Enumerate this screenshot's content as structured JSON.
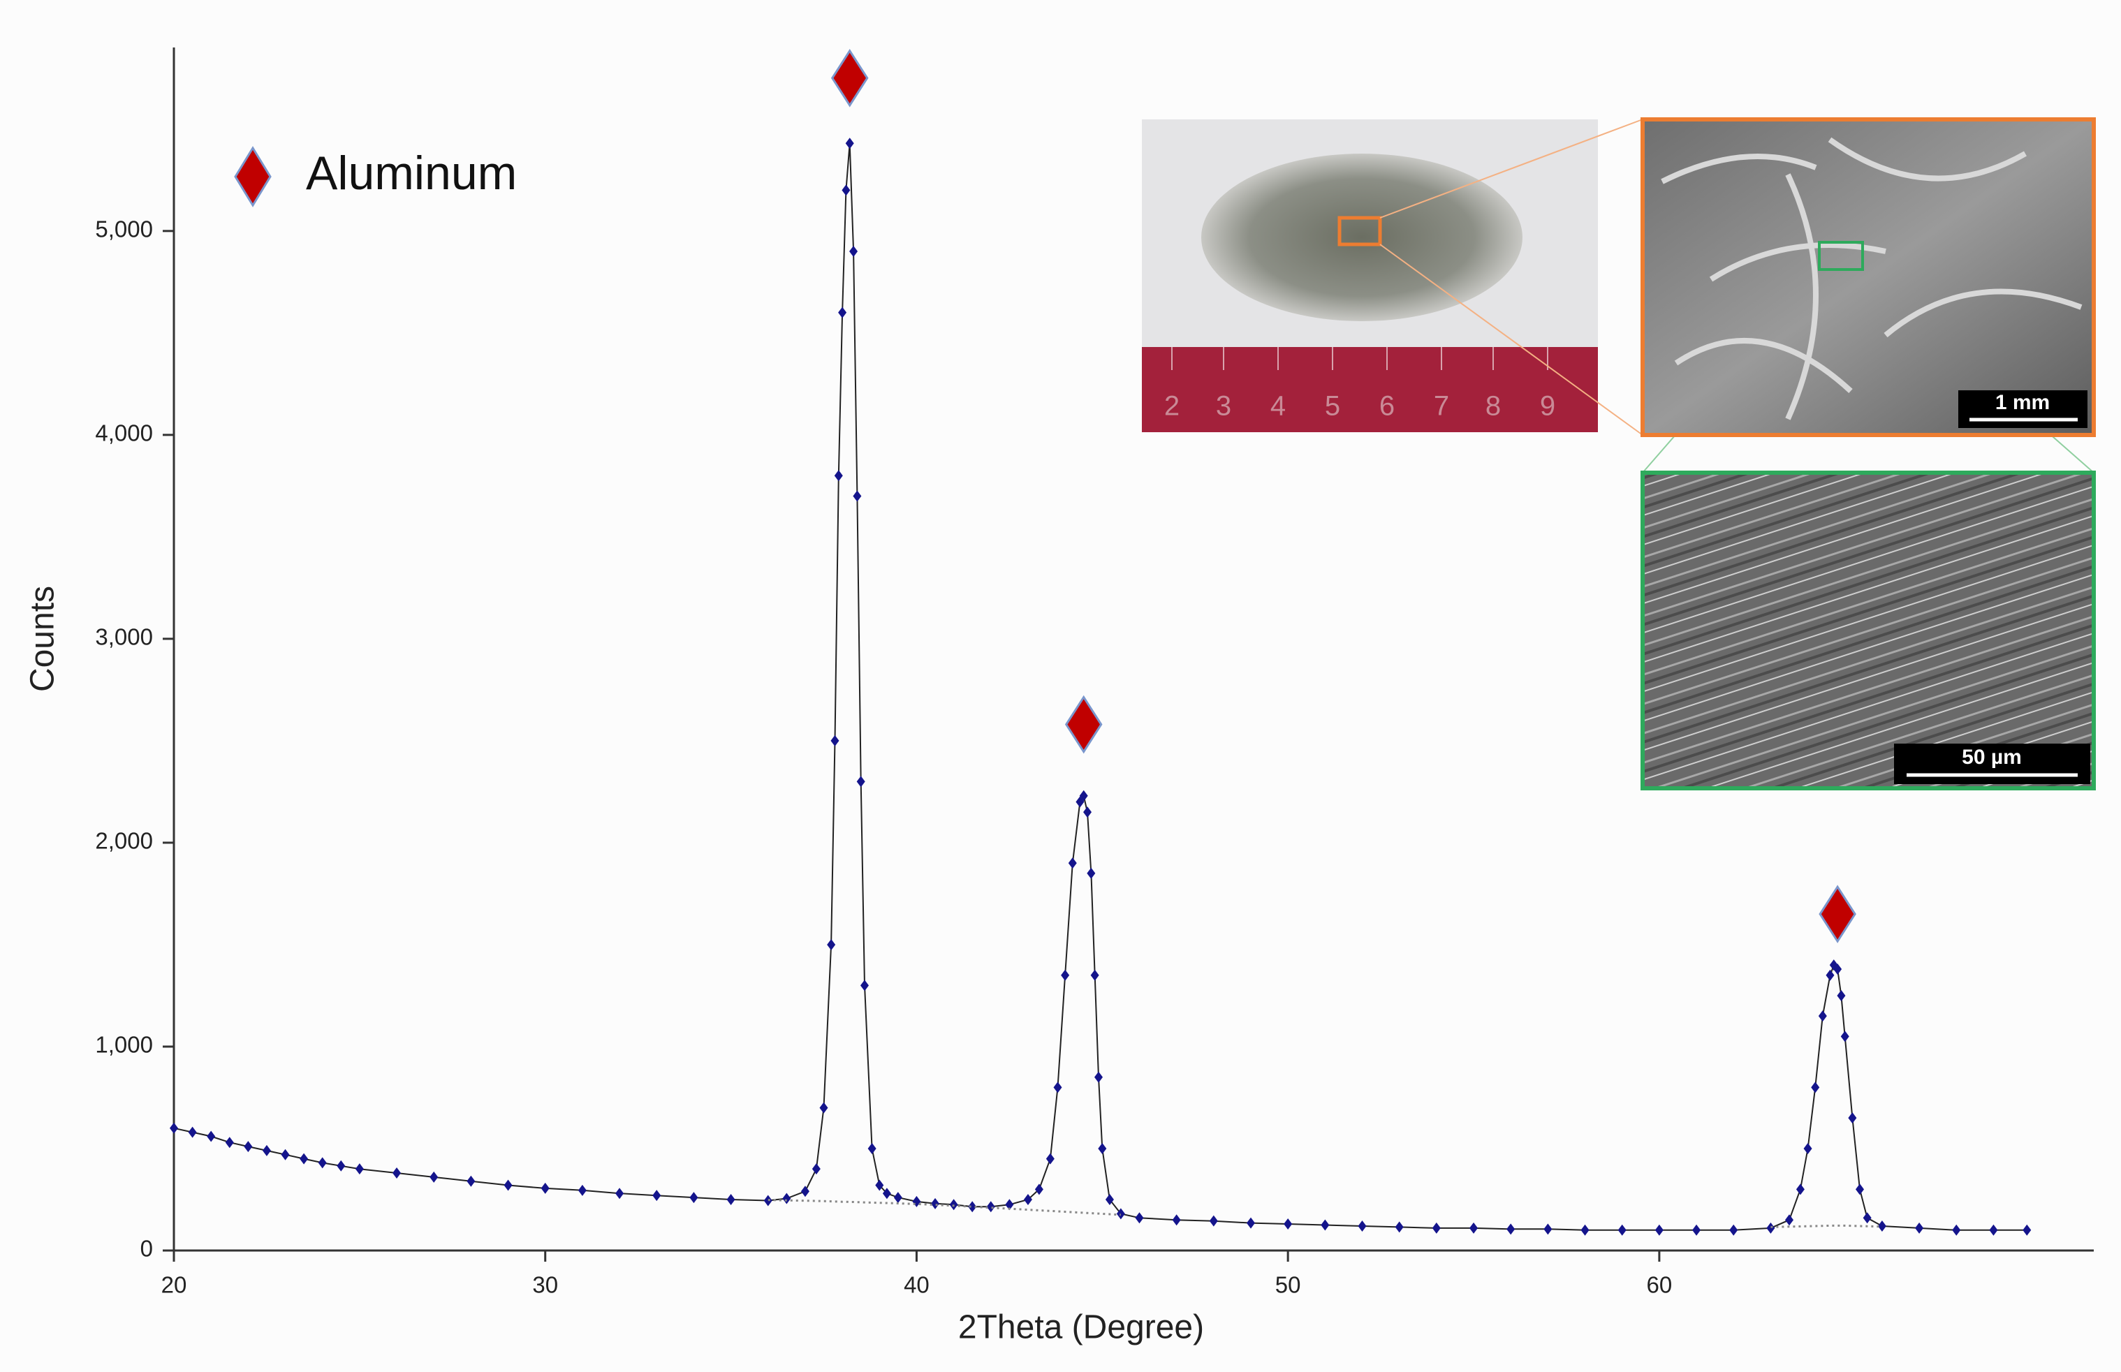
{
  "chart_data": {
    "type": "line",
    "xlabel": "2Theta (Degree)",
    "ylabel": "Counts",
    "x": [
      20,
      20.5,
      21,
      21.5,
      22,
      22.5,
      23,
      23.5,
      24,
      24.5,
      25,
      26,
      27,
      28,
      29,
      30,
      31,
      32,
      33,
      34,
      35,
      36,
      36.5,
      37,
      37.3,
      37.5,
      37.7,
      37.8,
      37.9,
      38.0,
      38.1,
      38.2,
      38.3,
      38.4,
      38.5,
      38.6,
      38.8,
      39.0,
      39.2,
      39.5,
      40,
      40.5,
      41,
      41.5,
      42,
      42.5,
      43,
      43.3,
      43.6,
      43.8,
      44.0,
      44.2,
      44.4,
      44.5,
      44.6,
      44.7,
      44.8,
      44.9,
      45.0,
      45.2,
      45.5,
      46,
      47,
      48,
      49,
      50,
      51,
      52,
      53,
      54,
      55,
      56,
      57,
      58,
      59,
      60,
      61,
      62,
      63,
      63.5,
      63.8,
      64.0,
      64.2,
      64.4,
      64.6,
      64.7,
      64.8,
      64.9,
      65.0,
      65.2,
      65.4,
      65.6,
      66,
      67,
      68,
      69,
      69.9
    ],
    "series": [
      {
        "color": "#14148c",
        "line_color": "#222222",
        "marker": "diamond",
        "values": [
          600,
          580,
          560,
          530,
          510,
          490,
          470,
          450,
          430,
          415,
          400,
          380,
          360,
          340,
          320,
          305,
          295,
          280,
          270,
          260,
          250,
          245,
          255,
          290,
          400,
          700,
          1500,
          2500,
          3800,
          4600,
          5200,
          5430,
          4900,
          3700,
          2300,
          1300,
          500,
          320,
          280,
          260,
          240,
          230,
          225,
          215,
          215,
          225,
          250,
          300,
          450,
          800,
          1350,
          1900,
          2200,
          2230,
          2150,
          1850,
          1350,
          850,
          500,
          250,
          180,
          160,
          150,
          145,
          135,
          130,
          125,
          120,
          115,
          110,
          110,
          105,
          105,
          100,
          100,
          100,
          100,
          100,
          110,
          150,
          300,
          500,
          800,
          1150,
          1350,
          1400,
          1380,
          1250,
          1050,
          650,
          300,
          160,
          120,
          110,
          100,
          100,
          100
        ]
      },
      {
        "color": "#888888",
        "dash": "dotted",
        "values": [
          null,
          null,
          null,
          null,
          null,
          null,
          null,
          null,
          null,
          null,
          null,
          null,
          null,
          null,
          null,
          null,
          null,
          null,
          null,
          null,
          null,
          248,
          246,
          244,
          243,
          242,
          241,
          240,
          240,
          239,
          239,
          238,
          238,
          237,
          237,
          236,
          235,
          234,
          233,
          231,
          228,
          224,
          220,
          215,
          210,
          205,
          200,
          197,
          194,
          192,
          190,
          188,
          186,
          185,
          184,
          183,
          182,
          181,
          180,
          178,
          175,
          null,
          null,
          null,
          null,
          null,
          null,
          null,
          null,
          null,
          null,
          null,
          null,
          null,
          null,
          null,
          null,
          null,
          115,
          117,
          118,
          119,
          120,
          121,
          122,
          122,
          122,
          122,
          122,
          121,
          120,
          119,
          117,
          null,
          null,
          null,
          null
        ]
      }
    ],
    "xlim": [
      20,
      71.7
    ],
    "ylim": [
      0,
      5900
    ],
    "xticks": [
      20,
      30,
      40,
      50,
      60
    ],
    "yticks": [
      0,
      {
        "value": 1000,
        "label": "1,000"
      },
      {
        "value": 2000,
        "label": "2,000"
      },
      {
        "value": 3000,
        "label": "3,000"
      },
      {
        "value": 4000,
        "label": "4,000"
      },
      {
        "value": 5000,
        "label": "5,000"
      }
    ],
    "legend": {
      "label": "Aluminum",
      "color": "#c00000",
      "position": "upper left"
    },
    "peak_markers": {
      "x": [
        38.2,
        44.5,
        64.8
      ],
      "y": [
        5750,
        2580,
        1650
      ]
    }
  },
  "insets": {
    "ruler_labels": [
      "2",
      "3",
      "4",
      "5",
      "6",
      "7",
      "8",
      "9"
    ],
    "scale_bars": [
      "1 mm",
      "50 µm"
    ]
  }
}
